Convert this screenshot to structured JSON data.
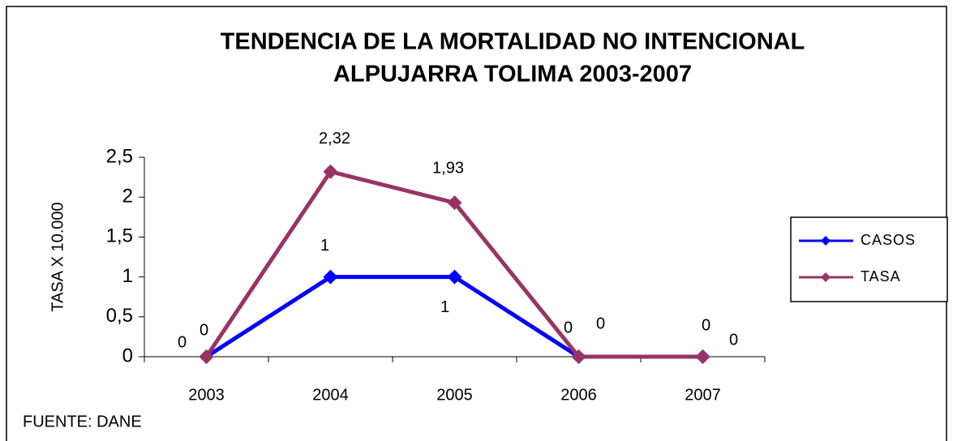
{
  "chart_data": {
    "type": "line",
    "title": "TENDENCIA DE LA MORTALIDAD NO INTENCIONAL",
    "subtitle": "ALPUJARRA TOLIMA 2003-2007",
    "y_label": "TASA X 10.000",
    "source": "FUENTE: DANE",
    "categories": [
      "2003",
      "2004",
      "2005",
      "2006",
      "2007"
    ],
    "series": [
      {
        "name": "CASOS",
        "color": "#0000ff",
        "values": [
          0,
          1,
          1,
          0,
          0
        ]
      },
      {
        "name": "TASA",
        "color": "#993366",
        "values": [
          0,
          2.32,
          1.93,
          0,
          0
        ],
        "value_labels": [
          "0",
          "2,32",
          "1,93",
          "0",
          "0"
        ]
      }
    ],
    "ylim": [
      0,
      2.5
    ],
    "yticks": [
      0,
      {
        "value": 0.5,
        "label": "0,5"
      },
      1,
      {
        "value": 1.5,
        "label": "1,5"
      },
      2,
      {
        "value": 2.5,
        "label": "2,5"
      }
    ],
    "legend": "right"
  }
}
